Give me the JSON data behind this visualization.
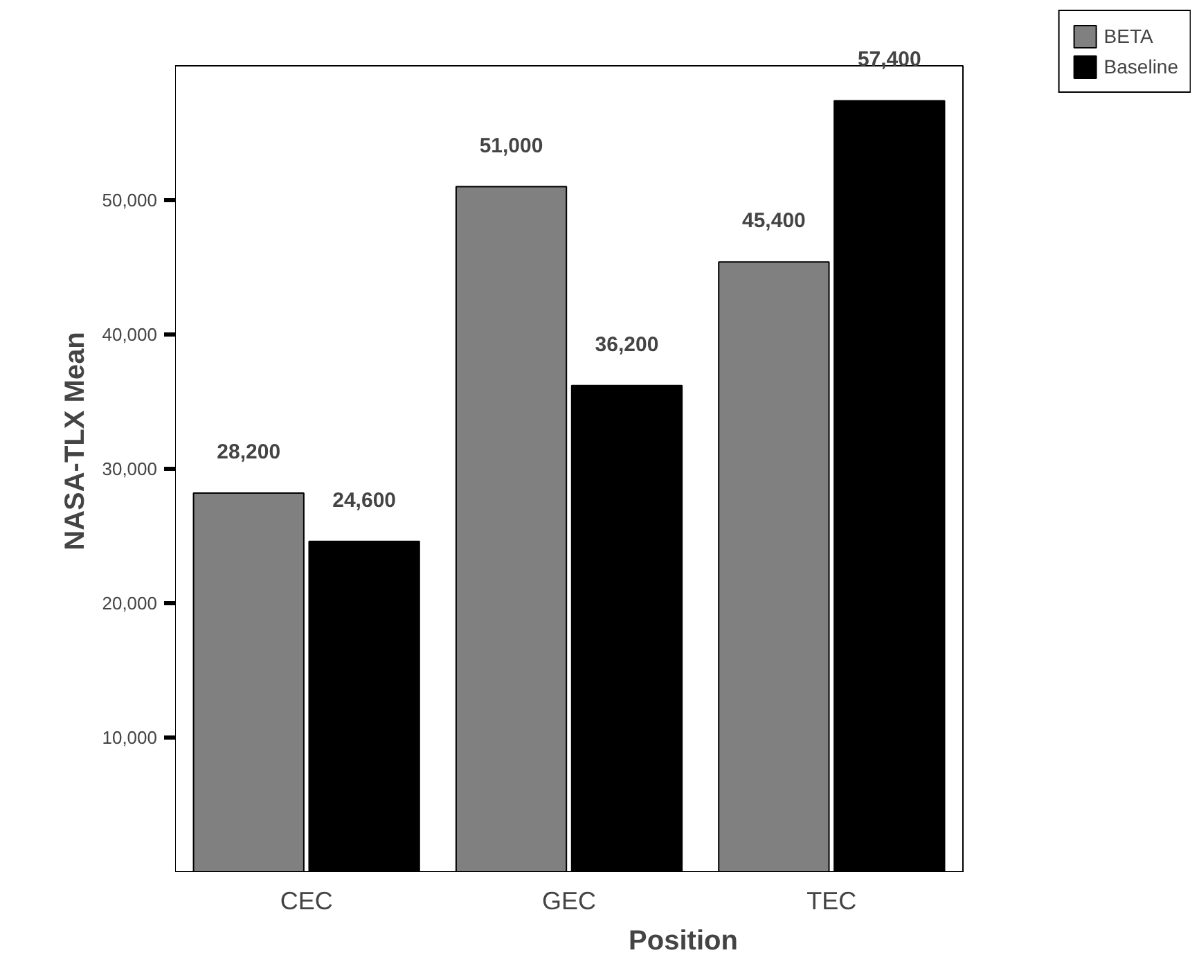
{
  "chart_data": {
    "type": "bar",
    "xlabel": "Position",
    "ylabel": "NASA-TLX Mean",
    "categories": [
      "CEC",
      "GEC",
      "TEC"
    ],
    "series": [
      {
        "name": "BETA",
        "color": "#808080",
        "values": [
          28200,
          51000,
          45400
        ]
      },
      {
        "name": "Baseline",
        "color": "#000000",
        "values": [
          24600,
          36200,
          57400
        ]
      }
    ],
    "ylim": [
      0,
      60000
    ],
    "yticks": [
      {
        "value": 10000,
        "label": "10,000"
      },
      {
        "value": 20000,
        "label": "20,000"
      },
      {
        "value": 30000,
        "label": "30,000"
      },
      {
        "value": 40000,
        "label": "40,000"
      },
      {
        "value": 50000,
        "label": "50,000"
      }
    ],
    "value_labels": [
      [
        "28,200",
        "51,000",
        "45,400"
      ],
      [
        "24,600",
        "36,200",
        "57,400"
      ]
    ],
    "grid": false,
    "legend": "top right"
  }
}
